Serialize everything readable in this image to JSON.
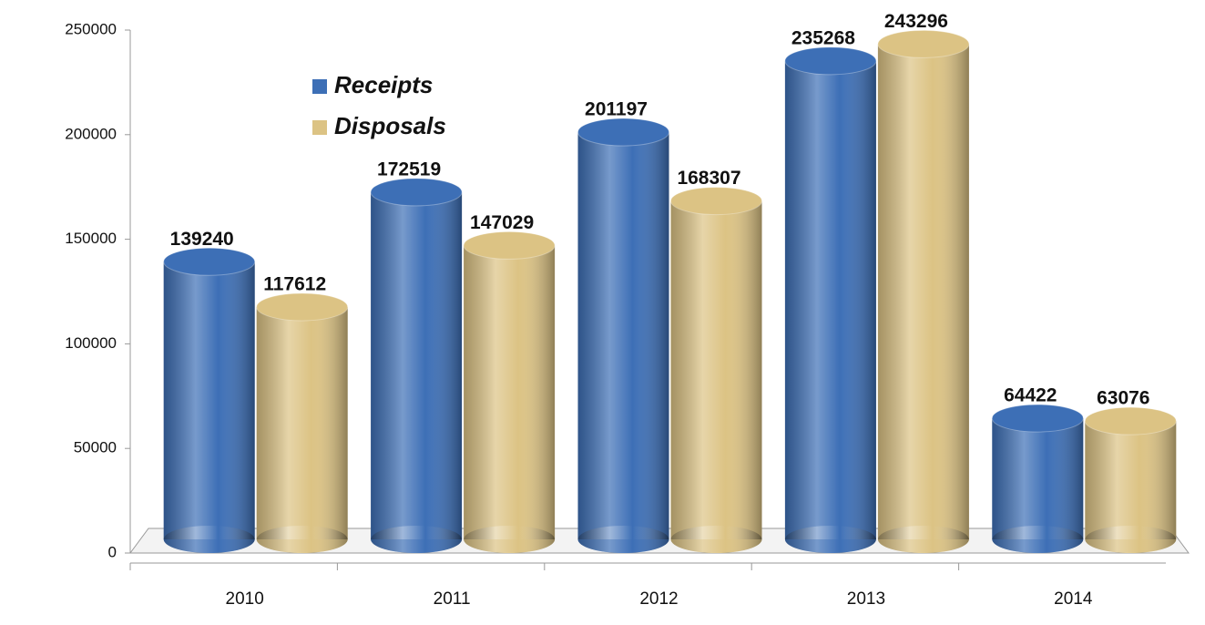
{
  "chart_data": {
    "type": "bar",
    "categories": [
      "2010",
      "2011",
      "2012",
      "2013",
      "2014"
    ],
    "series": [
      {
        "name": "Receipts",
        "color": "#3d6fb6",
        "values": [
          139240,
          172519,
          201197,
          235268,
          64422
        ]
      },
      {
        "name": "Disposals",
        "color": "#dcc384",
        "values": [
          117612,
          147029,
          168307,
          243296,
          63076
        ]
      }
    ],
    "ylim": [
      0,
      250000
    ],
    "yticks": [
      0,
      50000,
      100000,
      150000,
      200000,
      250000
    ],
    "legend": "upper left"
  }
}
